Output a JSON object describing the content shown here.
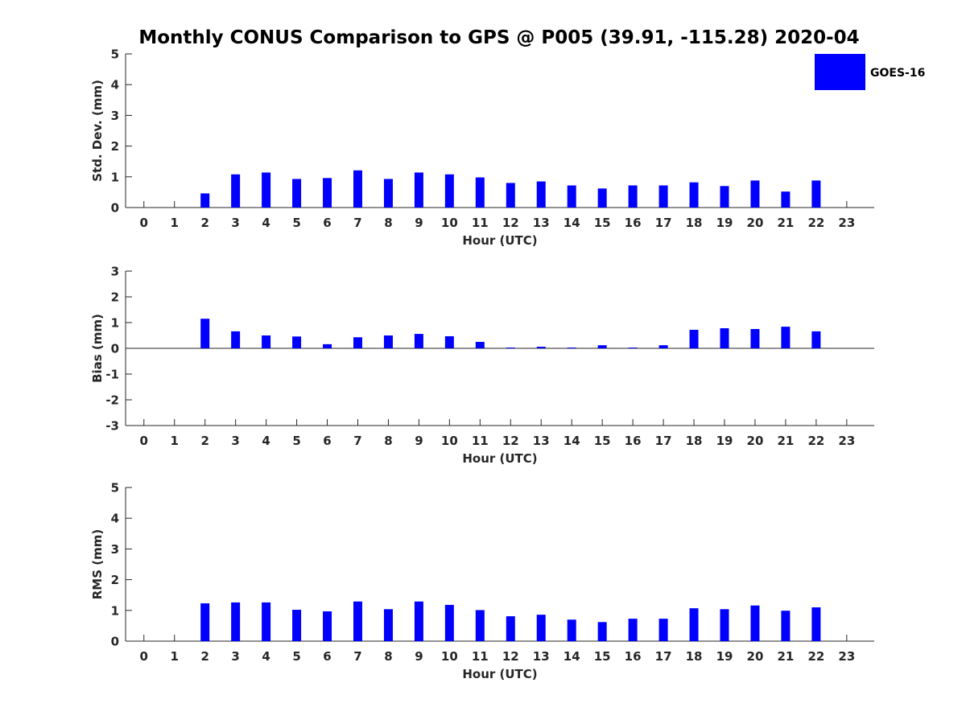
{
  "figure_title": "Monthly CONUS Comparison to GPS @ P005 (39.91, -115.28) 2020-04",
  "legend": {
    "label": "GOES-16",
    "color": "#0000ff"
  },
  "colors": {
    "bar": "#0000ff",
    "axis": "#262626"
  },
  "chart_data": [
    {
      "type": "bar",
      "title": "Monthly CONUS Comparison to GPS @ P005 (39.91, -115.28) 2020-04",
      "xlabel": "Hour (UTC)",
      "ylabel": "Std. Dev. (mm)",
      "xlim": [
        -0.6,
        23.9
      ],
      "ylim": [
        0,
        5
      ],
      "yticks": [
        "0",
        "1",
        "2",
        "3",
        "4",
        "5"
      ],
      "categories": [
        "0",
        "1",
        "2",
        "3",
        "4",
        "5",
        "6",
        "7",
        "8",
        "9",
        "10",
        "11",
        "12",
        "13",
        "14",
        "15",
        "16",
        "17",
        "18",
        "19",
        "20",
        "21",
        "22",
        "23"
      ],
      "series": [
        {
          "name": "GOES-16",
          "values": [
            null,
            null,
            0.46,
            1.08,
            1.14,
            0.93,
            0.96,
            1.21,
            0.93,
            1.14,
            1.08,
            0.98,
            0.8,
            0.85,
            0.72,
            0.62,
            0.72,
            0.72,
            0.82,
            0.7,
            0.88,
            0.52,
            0.88,
            null
          ]
        }
      ],
      "legend_position": "top-right"
    },
    {
      "type": "bar",
      "xlabel": "Hour (UTC)",
      "ylabel": "Bias (mm)",
      "xlim": [
        -0.6,
        23.9
      ],
      "ylim": [
        -3,
        3
      ],
      "yticks": [
        "-3",
        "-2",
        "-1",
        "0",
        "1",
        "2",
        "3"
      ],
      "categories": [
        "0",
        "1",
        "2",
        "3",
        "4",
        "5",
        "6",
        "7",
        "8",
        "9",
        "10",
        "11",
        "12",
        "13",
        "14",
        "15",
        "16",
        "17",
        "18",
        "19",
        "20",
        "21",
        "22",
        "23"
      ],
      "series": [
        {
          "name": "GOES-16",
          "values": [
            null,
            null,
            1.15,
            0.66,
            0.5,
            0.46,
            0.16,
            0.43,
            0.5,
            0.56,
            0.47,
            0.25,
            0.03,
            0.06,
            0.03,
            0.12,
            0.03,
            0.12,
            0.72,
            0.78,
            0.75,
            0.84,
            0.66,
            null
          ]
        }
      ]
    },
    {
      "type": "bar",
      "xlabel": "Hour (UTC)",
      "ylabel": "RMS (mm)",
      "xlim": [
        -0.6,
        23.9
      ],
      "ylim": [
        0,
        5
      ],
      "yticks": [
        "0",
        "1",
        "2",
        "3",
        "4",
        "5"
      ],
      "categories": [
        "0",
        "1",
        "2",
        "3",
        "4",
        "5",
        "6",
        "7",
        "8",
        "9",
        "10",
        "11",
        "12",
        "13",
        "14",
        "15",
        "16",
        "17",
        "18",
        "19",
        "20",
        "21",
        "22",
        "23"
      ],
      "series": [
        {
          "name": "GOES-16",
          "values": [
            null,
            null,
            1.23,
            1.26,
            1.26,
            1.02,
            0.97,
            1.29,
            1.04,
            1.29,
            1.18,
            1.01,
            0.81,
            0.86,
            0.7,
            0.62,
            0.73,
            0.73,
            1.07,
            1.04,
            1.16,
            0.99,
            1.1,
            null
          ]
        }
      ]
    }
  ]
}
